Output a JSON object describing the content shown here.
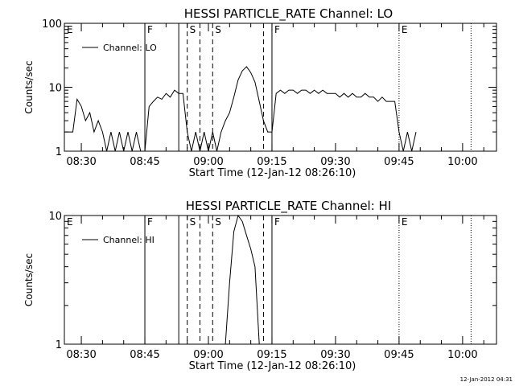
{
  "footer_timestamp": "12-Jan-2012 04:31",
  "chart_data": [
    {
      "type": "line",
      "title": "HESSI PARTICLE_RATE Channel: LO",
      "xlabel": "Start Time (12-Jan-12 08:26:10)",
      "ylabel": "Counts/sec",
      "y_scale": "log",
      "ylim": [
        1,
        100
      ],
      "y_ticks": [
        {
          "value": 1,
          "label": "1"
        },
        {
          "value": 10,
          "label": "10"
        },
        {
          "value": 100,
          "label": "100"
        }
      ],
      "xlim": [
        "08:26",
        "10:08"
      ],
      "x_ticks": [
        "08:30",
        "08:45",
        "09:00",
        "09:15",
        "09:30",
        "09:45",
        "10:00"
      ],
      "grid": false,
      "legend": {
        "label": "Channel: LO",
        "position": "top-left"
      },
      "series": [
        {
          "name": "Channel: LO",
          "color": "#000000",
          "points": [
            [
              "08:26",
              2
            ],
            [
              "08:27",
              2
            ],
            [
              "08:28",
              2
            ],
            [
              "08:29",
              6.5
            ],
            [
              "08:30",
              5
            ],
            [
              "08:31",
              3
            ],
            [
              "08:32",
              4
            ],
            [
              "08:33",
              2
            ],
            [
              "08:34",
              3
            ],
            [
              "08:35",
              2
            ],
            [
              "08:36",
              1
            ],
            [
              "08:37",
              2
            ],
            [
              "08:38",
              1
            ],
            [
              "08:39",
              2
            ],
            [
              "08:40",
              1
            ],
            [
              "08:41",
              2
            ],
            [
              "08:42",
              1
            ],
            [
              "08:43",
              2
            ],
            [
              "08:44",
              1
            ],
            [
              "08:45",
              1
            ],
            [
              "08:46",
              5
            ],
            [
              "08:47",
              6
            ],
            [
              "08:48",
              7
            ],
            [
              "08:49",
              6.5
            ],
            [
              "08:50",
              8
            ],
            [
              "08:51",
              7
            ],
            [
              "08:52",
              9
            ],
            [
              "08:53",
              8
            ],
            [
              "08:54",
              8
            ],
            [
              "08:55",
              2
            ],
            [
              "08:56",
              1
            ],
            [
              "08:57",
              2
            ],
            [
              "08:58",
              1
            ],
            [
              "08:59",
              2
            ],
            [
              "09:00",
              1
            ],
            [
              "09:01",
              2
            ],
            [
              "09:02",
              1
            ],
            [
              "09:03",
              2
            ],
            [
              "09:04",
              3
            ],
            [
              "09:05",
              4
            ],
            [
              "09:06",
              7
            ],
            [
              "09:07",
              13
            ],
            [
              "09:08",
              18
            ],
            [
              "09:09",
              21
            ],
            [
              "09:10",
              17
            ],
            [
              "09:11",
              12
            ],
            [
              "09:12",
              6
            ],
            [
              "09:13",
              3
            ],
            [
              "09:14",
              2
            ],
            [
              "09:15",
              2
            ],
            [
              "09:16",
              8
            ],
            [
              "09:17",
              9
            ],
            [
              "09:18",
              8
            ],
            [
              "09:19",
              9
            ],
            [
              "09:20",
              9
            ],
            [
              "09:21",
              8
            ],
            [
              "09:22",
              9
            ],
            [
              "09:23",
              9
            ],
            [
              "09:24",
              8
            ],
            [
              "09:25",
              9
            ],
            [
              "09:26",
              8
            ],
            [
              "09:27",
              9
            ],
            [
              "09:28",
              8
            ],
            [
              "09:29",
              8
            ],
            [
              "09:30",
              8
            ],
            [
              "09:31",
              7
            ],
            [
              "09:32",
              8
            ],
            [
              "09:33",
              7
            ],
            [
              "09:34",
              8
            ],
            [
              "09:35",
              7
            ],
            [
              "09:36",
              7
            ],
            [
              "09:37",
              8
            ],
            [
              "09:38",
              7
            ],
            [
              "09:39",
              7
            ],
            [
              "09:40",
              6
            ],
            [
              "09:41",
              7
            ],
            [
              "09:42",
              6
            ],
            [
              "09:43",
              6
            ],
            [
              "09:44",
              6
            ],
            [
              "09:45",
              2
            ],
            [
              "09:46",
              1
            ],
            [
              "09:47",
              2
            ],
            [
              "09:48",
              1
            ],
            [
              "09:49",
              2
            ]
          ]
        }
      ],
      "markers": [
        {
          "time": "08:26",
          "label": "E",
          "style": "none"
        },
        {
          "time": "08:45",
          "label": "F",
          "style": "solid"
        },
        {
          "time": "08:53",
          "label": "",
          "style": "solid"
        },
        {
          "time": "08:55",
          "label": "S",
          "style": "dashed"
        },
        {
          "time": "08:58",
          "label": "",
          "style": "dashed"
        },
        {
          "time": "09:01",
          "label": "S",
          "style": "dashed"
        },
        {
          "time": "09:13",
          "label": "",
          "style": "dashed"
        },
        {
          "time": "09:15",
          "label": "F",
          "style": "solid"
        },
        {
          "time": "09:45",
          "label": "E",
          "style": "dotted"
        },
        {
          "time": "10:02",
          "label": "",
          "style": "dotted"
        }
      ]
    },
    {
      "type": "line",
      "title": "HESSI PARTICLE_RATE Channel: HI",
      "xlabel": "Start Time (12-Jan-12 08:26:10)",
      "ylabel": "Counts/sec",
      "y_scale": "log",
      "ylim": [
        1,
        10
      ],
      "y_ticks": [
        {
          "value": 1,
          "label": "1"
        },
        {
          "value": 10,
          "label": "10"
        }
      ],
      "xlim": [
        "08:26",
        "10:08"
      ],
      "x_ticks": [
        "08:30",
        "08:45",
        "09:00",
        "09:15",
        "09:30",
        "09:45",
        "10:00"
      ],
      "grid": false,
      "legend": {
        "label": "Channel: HI",
        "position": "top-left"
      },
      "series": [
        {
          "name": "Channel: HI",
          "color": "#000000",
          "points": [
            [
              "09:04",
              1
            ],
            [
              "09:05",
              3
            ],
            [
              "09:06",
              7.5
            ],
            [
              "09:07",
              10
            ],
            [
              "09:08",
              9
            ],
            [
              "09:09",
              7
            ],
            [
              "09:10",
              5.5
            ],
            [
              "09:11",
              4
            ],
            [
              "09:12",
              1
            ]
          ]
        }
      ],
      "markers": [
        {
          "time": "08:26",
          "label": "E",
          "style": "none"
        },
        {
          "time": "08:45",
          "label": "F",
          "style": "solid"
        },
        {
          "time": "08:53",
          "label": "",
          "style": "solid"
        },
        {
          "time": "08:55",
          "label": "S",
          "style": "dashed"
        },
        {
          "time": "08:58",
          "label": "",
          "style": "dashed"
        },
        {
          "time": "09:01",
          "label": "S",
          "style": "dashed"
        },
        {
          "time": "09:13",
          "label": "",
          "style": "dashed"
        },
        {
          "time": "09:15",
          "label": "F",
          "style": "solid"
        },
        {
          "time": "09:45",
          "label": "E",
          "style": "dotted"
        },
        {
          "time": "10:02",
          "label": "",
          "style": "dotted"
        }
      ]
    }
  ]
}
